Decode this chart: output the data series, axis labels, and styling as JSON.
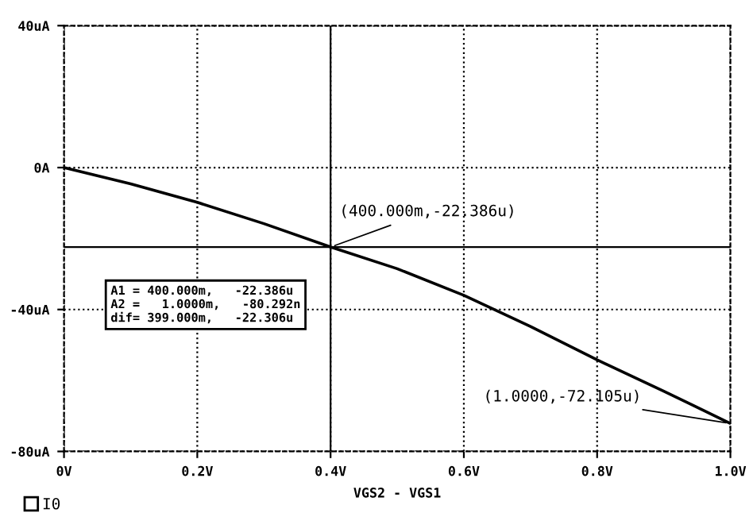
{
  "chart_data": {
    "type": "line",
    "xlabel": "VGS2 - VGS1",
    "x": [
      0,
      0.1,
      0.2,
      0.3,
      0.4,
      0.5,
      0.6,
      0.7,
      0.8,
      0.9,
      1.0
    ],
    "series": [
      {
        "name": "I0",
        "color": "#000000",
        "values": [
          0,
          -4.6,
          -9.8,
          -15.8,
          -22.386,
          -28.5,
          -36,
          -44.8,
          -54.2,
          -63,
          -72.105
        ]
      }
    ],
    "xlim": [
      0,
      1.0
    ],
    "ylim": [
      -80,
      40
    ],
    "xticks": [
      {
        "value": 0,
        "label": "0V"
      },
      {
        "value": 0.2,
        "label": "0.2V"
      },
      {
        "value": 0.4,
        "label": "0.4V"
      },
      {
        "value": 0.6,
        "label": "0.6V"
      },
      {
        "value": 0.8,
        "label": "0.8V"
      },
      {
        "value": 1.0,
        "label": "1.0V"
      }
    ],
    "yticks": [
      {
        "value": -80,
        "label": "-80uA"
      },
      {
        "value": -40,
        "label": "-40uA"
      },
      {
        "value": 0,
        "label": "0A"
      },
      {
        "value": 40,
        "label": "40uA"
      }
    ],
    "ref_lines": [
      {
        "axis": "x",
        "value": 0.4,
        "label": null,
        "color": "#000000",
        "line_style": "solid"
      },
      {
        "axis": "y",
        "value": -22.386,
        "label": null,
        "color": "#000000",
        "line_style": "solid"
      }
    ],
    "annotations": [
      {
        "text": "(400.000m,-22.386u)",
        "x": 0.4,
        "y": -22.386
      },
      {
        "text": "(1.0000,-72.105u)",
        "x": 1.0,
        "y": -72.105
      },
      "A1 = 400.000m,   -22.386u\nA2 =   1.0000m,   -80.292n\ndif= 399.000m,   -22.306u"
    ],
    "grid": true,
    "legend": "bottom left",
    "marker": "none",
    "line_style": "solid"
  }
}
